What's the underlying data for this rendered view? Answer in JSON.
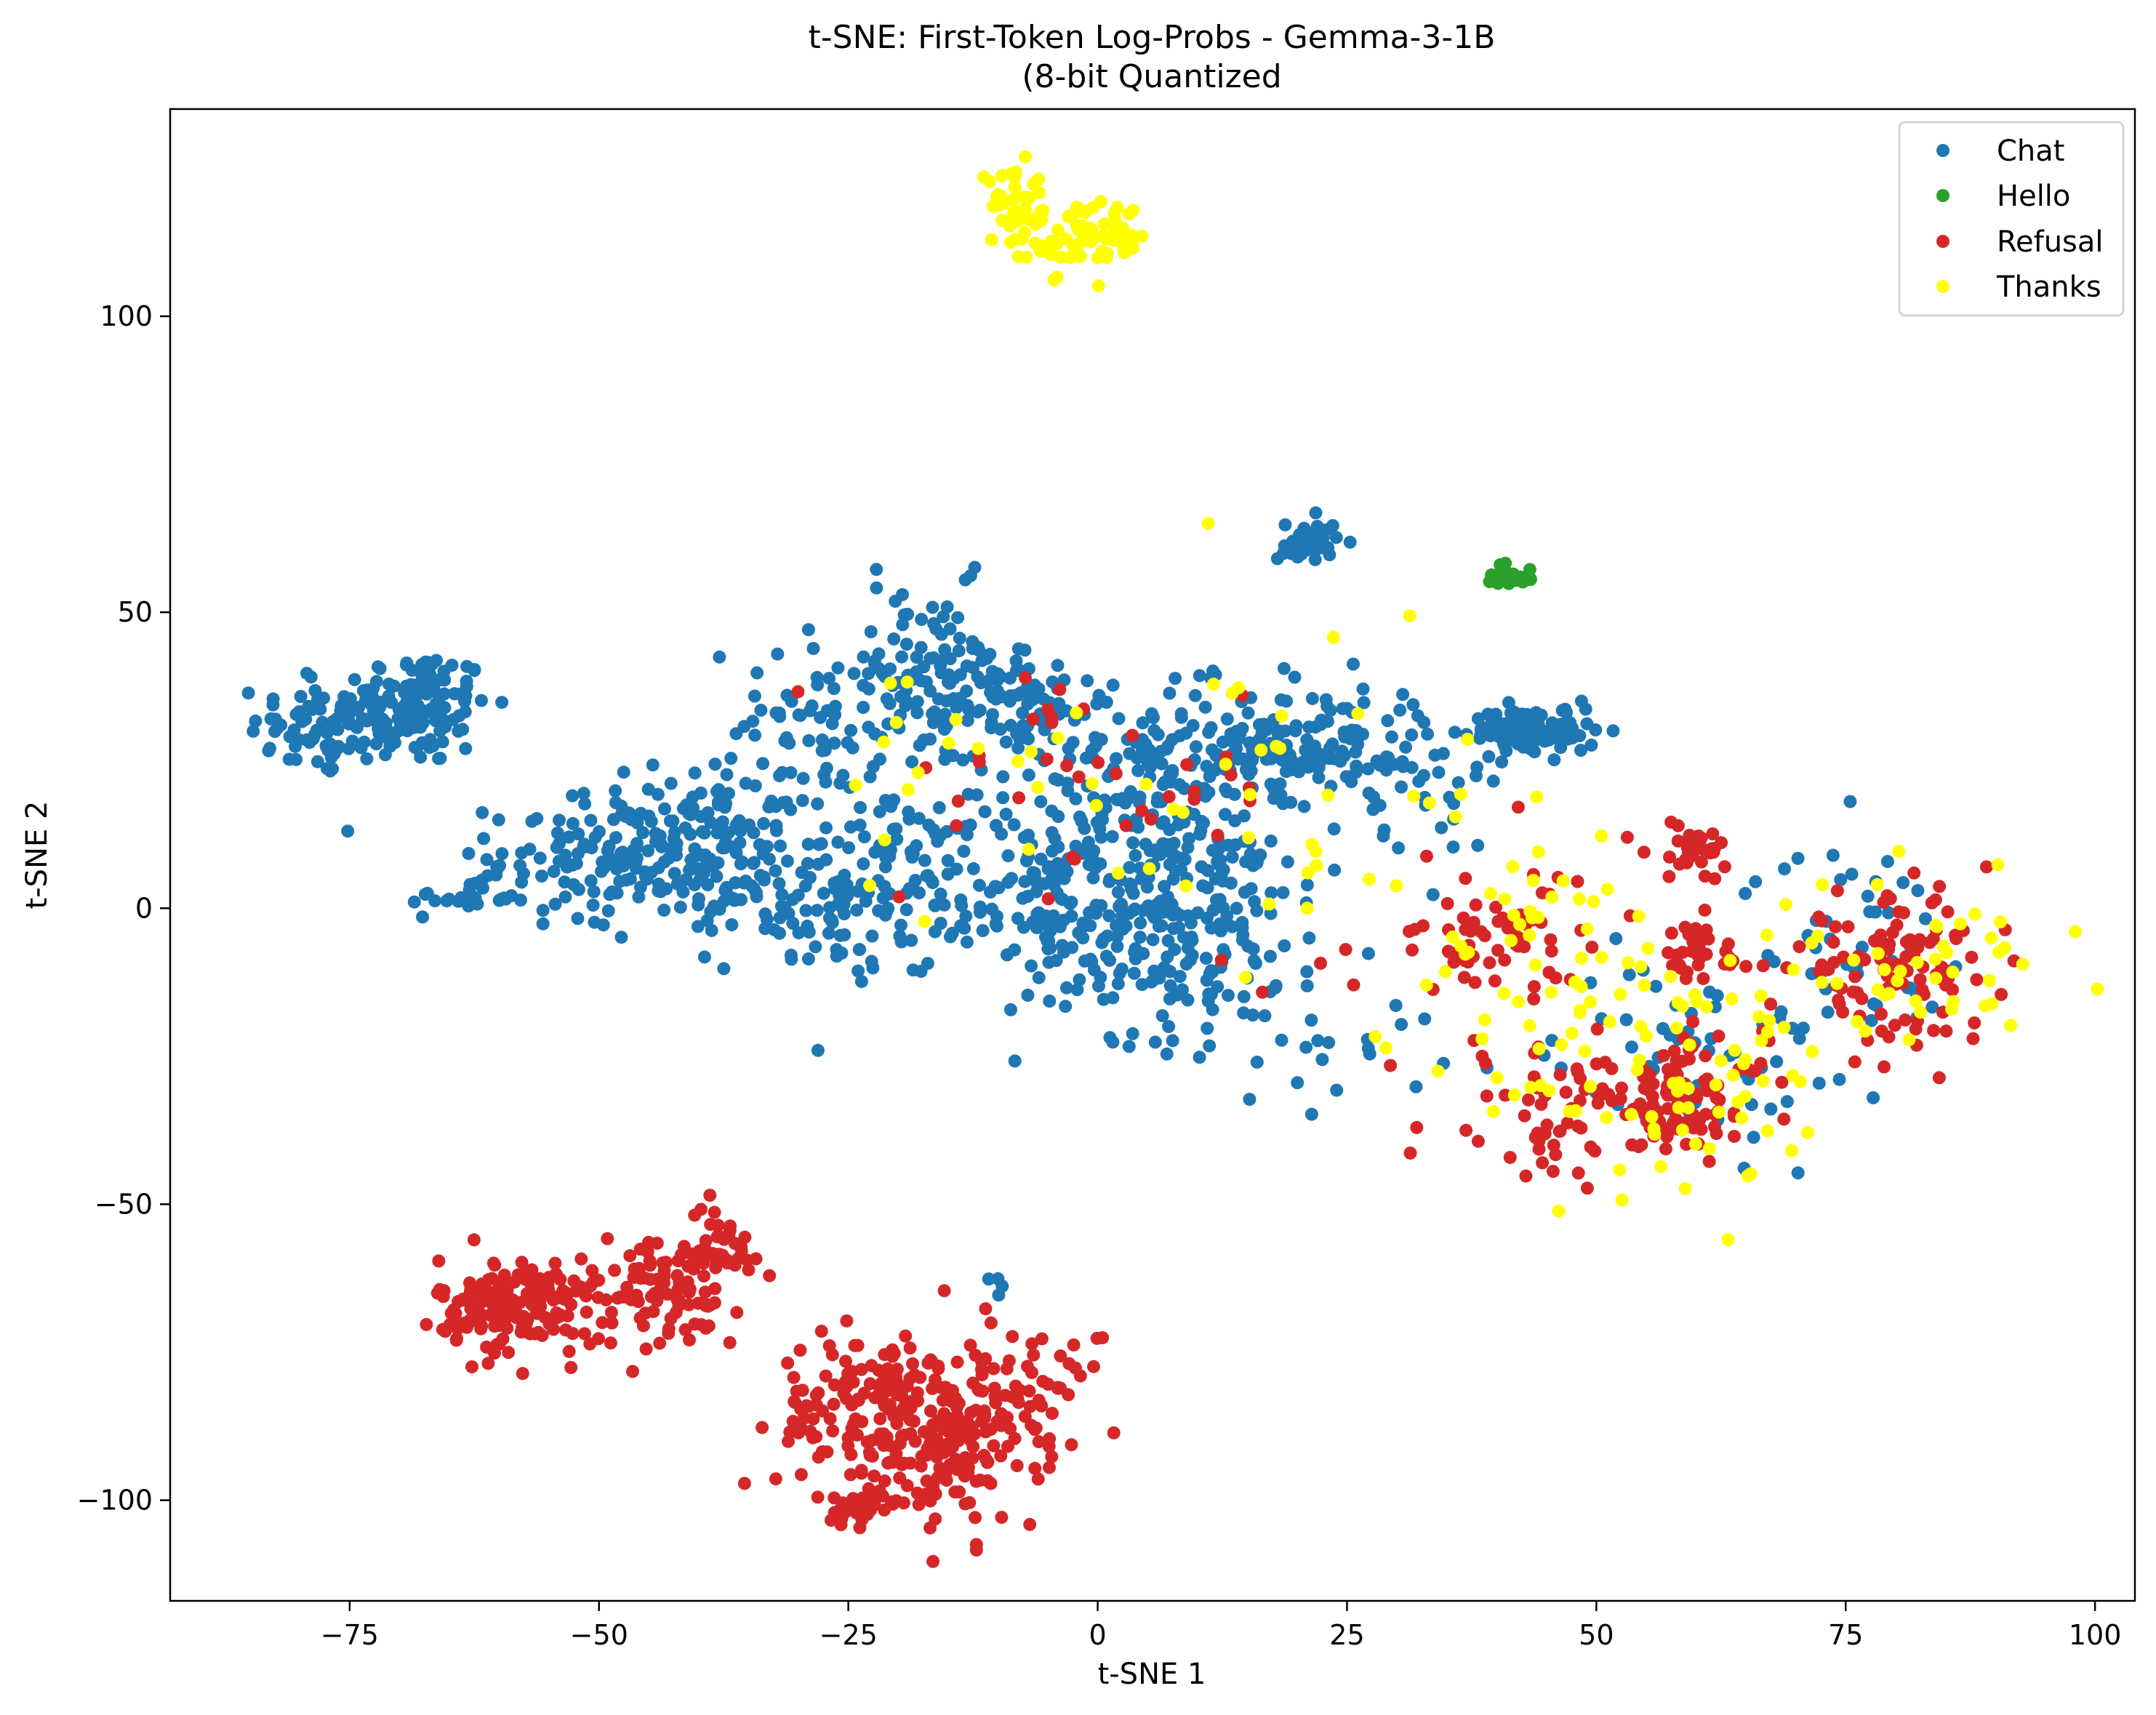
{
  "chart_data": {
    "type": "scatter",
    "title": "t-SNE: First-Token Log-Probs - Gemma-3-1B",
    "subtitle": "(8-bit Quantized",
    "xlabel": "t-SNE 1",
    "ylabel": "t-SNE 2",
    "xlim": [
      -93,
      104
    ],
    "ylim": [
      -117,
      135
    ],
    "xticks": [
      -75,
      -50,
      -25,
      0,
      25,
      50,
      75,
      100
    ],
    "yticks": [
      -100,
      -50,
      0,
      50,
      100
    ],
    "xtick_labels": [
      "−75",
      "−50",
      "−25",
      "0",
      "25",
      "50",
      "75",
      "100"
    ],
    "ytick_labels": [
      "−100",
      "−50",
      "0",
      "50",
      "100"
    ],
    "grid": false,
    "legend_position": "top-right",
    "series": [
      {
        "name": "Chat",
        "color": "#1f77b4",
        "clusters": [
          {
            "cx": -78,
            "cy": 30,
            "sx": 3.5,
            "sy": 4,
            "n": 60
          },
          {
            "cx": -69,
            "cy": 34,
            "sx": 4,
            "sy": 5,
            "n": 150
          },
          {
            "cx": -63,
            "cy": 2,
            "sx": 3,
            "sy": 1.5,
            "n": 25
          },
          {
            "cx": -53,
            "cy": 9,
            "sx": 4,
            "sy": 6,
            "n": 60
          },
          {
            "cx": -44,
            "cy": 9,
            "sx": 5,
            "sy": 6,
            "n": 120
          },
          {
            "cx": -36,
            "cy": 12,
            "sx": 3,
            "sy": 5,
            "n": 50
          },
          {
            "cx": -28,
            "cy": 30,
            "sx": 6,
            "sy": 7,
            "n": 60
          },
          {
            "cx": -25,
            "cy": 3,
            "sx": 6,
            "sy": 7,
            "n": 150
          },
          {
            "cx": -17,
            "cy": 38,
            "sx": 5,
            "sy": 8,
            "n": 120
          },
          {
            "cx": -8,
            "cy": 35,
            "sx": 4,
            "sy": 5,
            "n": 60
          },
          {
            "cx": -3,
            "cy": 5,
            "sx": 8,
            "sy": 10,
            "n": 180
          },
          {
            "cx": 8,
            "cy": -2,
            "sx": 8,
            "sy": 10,
            "n": 220
          },
          {
            "cx": 10,
            "cy": 25,
            "sx": 8,
            "sy": 6,
            "n": 160
          },
          {
            "cx": 22,
            "cy": 28,
            "sx": 6,
            "sy": 5,
            "n": 100
          },
          {
            "cx": 21,
            "cy": 62,
            "sx": 1.5,
            "sy": 2,
            "n": 40
          },
          {
            "cx": 44,
            "cy": 30,
            "sx": 3,
            "sy": 2,
            "n": 100
          },
          {
            "cx": 33,
            "cy": 22,
            "sx": 4,
            "sy": 6,
            "n": 30
          },
          {
            "cx": 24,
            "cy": -22,
            "sx": 5,
            "sy": 6,
            "n": 20
          },
          {
            "cx": 60,
            "cy": -25,
            "sx": 7,
            "sy": 8,
            "n": 60
          },
          {
            "cx": 75,
            "cy": -5,
            "sx": 5,
            "sy": 8,
            "n": 50
          },
          {
            "cx": -10,
            "cy": -63,
            "sx": 0.5,
            "sy": 1,
            "n": 4
          }
        ]
      },
      {
        "name": "Hello",
        "color": "#2ca02c",
        "clusters": [
          {
            "cx": 41,
            "cy": 56,
            "sx": 1.5,
            "sy": 1.5,
            "n": 22
          }
        ]
      },
      {
        "name": "Refusal",
        "color": "#d62728",
        "clusters": [
          {
            "cx": -58,
            "cy": -67,
            "sx": 4,
            "sy": 4,
            "n": 180
          },
          {
            "cx": -44,
            "cy": -65,
            "sx": 4,
            "sy": 5,
            "n": 80
          },
          {
            "cx": -38,
            "cy": -58,
            "sx": 2,
            "sy": 4,
            "n": 40
          },
          {
            "cx": -22,
            "cy": -85,
            "sx": 5,
            "sy": 7,
            "n": 160
          },
          {
            "cx": -14,
            "cy": -90,
            "sx": 4,
            "sy": 8,
            "n": 120
          },
          {
            "cx": -6,
            "cy": -82,
            "sx": 3,
            "sy": 5,
            "n": 50
          },
          {
            "cx": -24,
            "cy": -101,
            "sx": 2,
            "sy": 1.5,
            "n": 40
          },
          {
            "cx": 40,
            "cy": -5,
            "sx": 6,
            "sy": 5,
            "n": 60
          },
          {
            "cx": 47,
            "cy": -35,
            "sx": 4,
            "sy": 5,
            "n": 50
          },
          {
            "cx": 60,
            "cy": 10,
            "sx": 2.5,
            "sy": 2.5,
            "n": 35
          },
          {
            "cx": 60,
            "cy": -8,
            "sx": 3,
            "sy": 3,
            "n": 35
          },
          {
            "cx": 59,
            "cy": -32,
            "sx": 4,
            "sy": 5,
            "n": 90
          },
          {
            "cx": 80,
            "cy": -10,
            "sx": 5,
            "sy": 6,
            "n": 110
          },
          {
            "cx": 0,
            "cy": 20,
            "sx": 10,
            "sy": 10,
            "n": 40
          },
          {
            "cx": 35,
            "cy": -20,
            "sx": 10,
            "sy": 15,
            "n": 20
          }
        ]
      },
      {
        "name": "Thanks",
        "color": "#ffff00",
        "clusters": [
          {
            "cx": -8,
            "cy": 118,
            "sx": 2,
            "sy": 3,
            "n": 40
          },
          {
            "cx": -1,
            "cy": 113,
            "sx": 3,
            "sy": 3,
            "n": 70
          },
          {
            "cx": 45,
            "cy": -10,
            "sx": 6,
            "sy": 12,
            "n": 60
          },
          {
            "cx": 60,
            "cy": -30,
            "sx": 8,
            "sy": 10,
            "n": 60
          },
          {
            "cx": 82,
            "cy": -10,
            "sx": 7,
            "sy": 7,
            "n": 50
          },
          {
            "cx": 20,
            "cy": 20,
            "sx": 10,
            "sy": 15,
            "n": 30
          },
          {
            "cx": -10,
            "cy": 20,
            "sx": 8,
            "sy": 10,
            "n": 25
          }
        ]
      }
    ]
  }
}
